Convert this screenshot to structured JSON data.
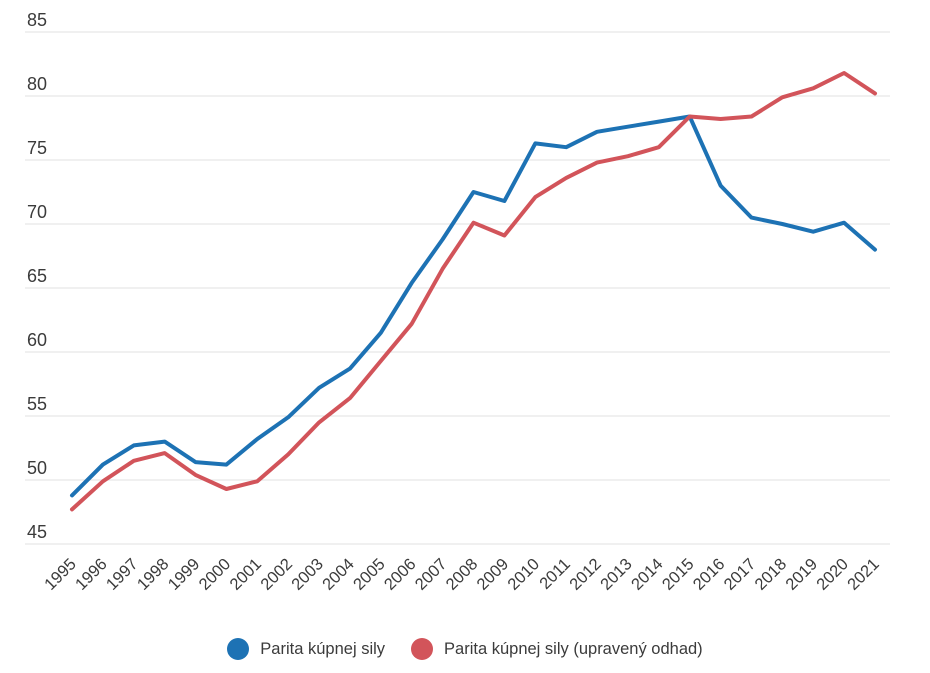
{
  "chart_data": {
    "type": "line",
    "x": [
      1995,
      1996,
      1997,
      1998,
      1999,
      2000,
      2001,
      2002,
      2003,
      2004,
      2005,
      2006,
      2007,
      2008,
      2009,
      2010,
      2011,
      2012,
      2013,
      2014,
      2015,
      2016,
      2017,
      2018,
      2019,
      2020,
      2021
    ],
    "series": [
      {
        "name": "Parita kúpnej sily",
        "color": "#1d72b4",
        "values": [
          48.8,
          51.2,
          52.7,
          53.0,
          51.4,
          51.2,
          53.2,
          54.9,
          57.2,
          58.7,
          61.5,
          65.4,
          68.8,
          72.5,
          71.8,
          76.3,
          76.0,
          77.2,
          77.6,
          78.0,
          78.4,
          73.0,
          70.5,
          70.0,
          69.4,
          70.1,
          68.0
        ]
      },
      {
        "name": "Parita kúpnej sily (upravený odhad)",
        "color": "#d2545a",
        "values": [
          47.7,
          49.9,
          51.5,
          52.1,
          50.4,
          49.3,
          49.9,
          52.0,
          54.5,
          56.4,
          59.3,
          62.2,
          66.5,
          70.1,
          69.1,
          72.1,
          73.6,
          74.8,
          75.3,
          76.0,
          78.4,
          78.2,
          78.4,
          79.9,
          80.6,
          81.8,
          80.2
        ]
      }
    ],
    "title": "",
    "xlabel": "",
    "ylabel": "",
    "ylim": [
      45,
      85
    ],
    "yticks": [
      45,
      50,
      55,
      60,
      65,
      70,
      75,
      80,
      85
    ],
    "grid": true,
    "legend_position": "bottom",
    "colors": {
      "grid": "#e0e0e0",
      "tick_text": "#3b3b3b",
      "background": "#ffffff"
    }
  }
}
